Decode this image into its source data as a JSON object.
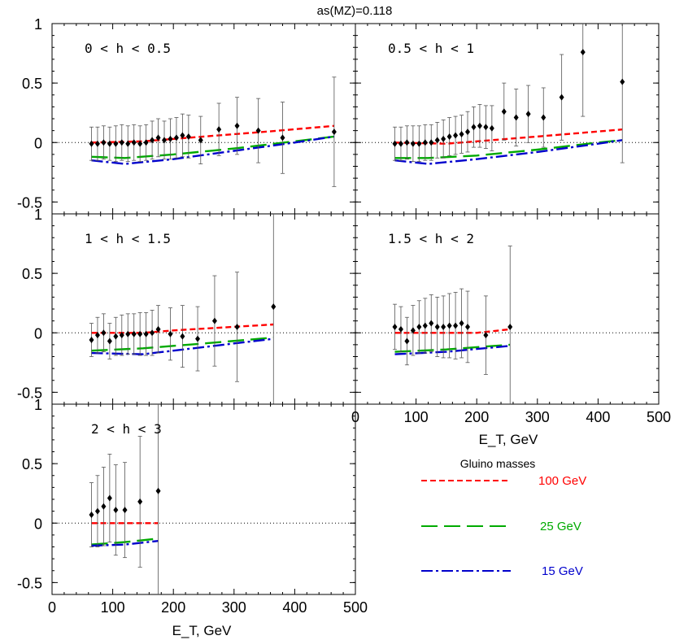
{
  "header": {
    "title": "as(MZ)=0.118"
  },
  "x_axis_label": "E_T, GeV",
  "legend": {
    "title": "Gluino masses",
    "entries": [
      {
        "label": "100 GeV",
        "color": "#ff0000",
        "style": "dashed"
      },
      {
        "label": "25 GeV",
        "color": "#00aa00",
        "style": "long-dashed"
      },
      {
        "label": "15 GeV",
        "color": "#0000cc",
        "style": "dash-dot"
      }
    ]
  },
  "chart_data": [
    {
      "type": "scatter",
      "title": "0 < h < 0.5",
      "xlim": [
        0,
        500
      ],
      "ylim": [
        -0.6,
        1.0
      ],
      "yticks": [
        -0.5,
        0,
        0.5,
        1
      ],
      "points": [
        {
          "x": 65,
          "y": -0.01,
          "err": 0.14
        },
        {
          "x": 75,
          "y": -0.01,
          "err": 0.14
        },
        {
          "x": 85,
          "y": 0.0,
          "err": 0.14
        },
        {
          "x": 95,
          "y": -0.01,
          "err": 0.14
        },
        {
          "x": 105,
          "y": -0.01,
          "err": 0.15
        },
        {
          "x": 115,
          "y": 0.0,
          "err": 0.15
        },
        {
          "x": 125,
          "y": -0.01,
          "err": 0.15
        },
        {
          "x": 135,
          "y": 0.0,
          "err": 0.15
        },
        {
          "x": 145,
          "y": -0.01,
          "err": 0.15
        },
        {
          "x": 155,
          "y": 0.0,
          "err": 0.15
        },
        {
          "x": 165,
          "y": 0.02,
          "err": 0.16
        },
        {
          "x": 175,
          "y": 0.04,
          "err": 0.16
        },
        {
          "x": 185,
          "y": 0.02,
          "err": 0.16
        },
        {
          "x": 195,
          "y": 0.03,
          "err": 0.17
        },
        {
          "x": 205,
          "y": 0.04,
          "err": 0.17
        },
        {
          "x": 215,
          "y": 0.06,
          "err": 0.18
        },
        {
          "x": 225,
          "y": 0.05,
          "err": 0.18
        },
        {
          "x": 245,
          "y": 0.02,
          "err": 0.2
        },
        {
          "x": 275,
          "y": 0.11,
          "err": 0.22
        },
        {
          "x": 305,
          "y": 0.14,
          "err": 0.24
        },
        {
          "x": 340,
          "y": 0.1,
          "err": 0.27
        },
        {
          "x": 380,
          "y": 0.04,
          "err": 0.3
        },
        {
          "x": 465,
          "y": 0.09,
          "err": 0.46
        }
      ],
      "series": [
        {
          "name": "100 GeV",
          "x": [
            65,
            150,
            250,
            350,
            465
          ],
          "y": [
            0.0,
            0.01,
            0.05,
            0.09,
            0.14
          ]
        },
        {
          "name": "25 GeV",
          "x": [
            65,
            120,
            200,
            300,
            400,
            465
          ],
          "y": [
            -0.12,
            -0.13,
            -0.1,
            -0.05,
            0.01,
            0.05
          ]
        },
        {
          "name": "15 GeV",
          "x": [
            65,
            120,
            200,
            300,
            400,
            465
          ],
          "y": [
            -0.15,
            -0.18,
            -0.14,
            -0.07,
            0.0,
            0.05
          ]
        }
      ]
    },
    {
      "type": "scatter",
      "title": "0.5 < h < 1",
      "xlim": [
        0,
        500
      ],
      "ylim": [
        -0.6,
        1.0
      ],
      "yticks": [
        -0.5,
        0,
        0.5,
        1
      ],
      "points": [
        {
          "x": 65,
          "y": -0.01,
          "err": 0.14
        },
        {
          "x": 75,
          "y": -0.01,
          "err": 0.14
        },
        {
          "x": 85,
          "y": 0.0,
          "err": 0.14
        },
        {
          "x": 95,
          "y": -0.01,
          "err": 0.15
        },
        {
          "x": 105,
          "y": -0.01,
          "err": 0.15
        },
        {
          "x": 115,
          "y": 0.0,
          "err": 0.15
        },
        {
          "x": 125,
          "y": 0.0,
          "err": 0.15
        },
        {
          "x": 135,
          "y": 0.02,
          "err": 0.15
        },
        {
          "x": 145,
          "y": 0.03,
          "err": 0.16
        },
        {
          "x": 155,
          "y": 0.05,
          "err": 0.16
        },
        {
          "x": 165,
          "y": 0.06,
          "err": 0.16
        },
        {
          "x": 175,
          "y": 0.07,
          "err": 0.16
        },
        {
          "x": 185,
          "y": 0.09,
          "err": 0.17
        },
        {
          "x": 195,
          "y": 0.13,
          "err": 0.17
        },
        {
          "x": 205,
          "y": 0.14,
          "err": 0.18
        },
        {
          "x": 215,
          "y": 0.13,
          "err": 0.18
        },
        {
          "x": 225,
          "y": 0.12,
          "err": 0.19
        },
        {
          "x": 245,
          "y": 0.26,
          "err": 0.24
        },
        {
          "x": 265,
          "y": 0.21,
          "err": 0.24
        },
        {
          "x": 285,
          "y": 0.24,
          "err": 0.24
        },
        {
          "x": 310,
          "y": 0.21,
          "err": 0.25
        },
        {
          "x": 340,
          "y": 0.38,
          "err": 0.36
        },
        {
          "x": 375,
          "y": 0.76,
          "err": 0.54
        },
        {
          "x": 440,
          "y": 0.51,
          "err": 0.68
        }
      ],
      "series": [
        {
          "name": "100 GeV",
          "x": [
            65,
            150,
            200,
            300,
            440
          ],
          "y": [
            0.0,
            -0.01,
            0.01,
            0.05,
            0.11
          ]
        },
        {
          "name": "25 GeV",
          "x": [
            65,
            120,
            200,
            300,
            400,
            440
          ],
          "y": [
            -0.13,
            -0.13,
            -0.11,
            -0.06,
            0.0,
            0.02
          ]
        },
        {
          "name": "15 GeV",
          "x": [
            65,
            120,
            200,
            300,
            400,
            440
          ],
          "y": [
            -0.15,
            -0.18,
            -0.14,
            -0.08,
            -0.01,
            0.02
          ]
        }
      ]
    },
    {
      "type": "scatter",
      "title": "1 < h < 1.5",
      "xlim": [
        0,
        500
      ],
      "ylim": [
        -0.6,
        1.0
      ],
      "yticks": [
        -0.5,
        0,
        0.5,
        1
      ],
      "points": [
        {
          "x": 65,
          "y": -0.06,
          "err": 0.14
        },
        {
          "x": 75,
          "y": -0.02,
          "err": 0.15
        },
        {
          "x": 85,
          "y": 0.0,
          "err": 0.16
        },
        {
          "x": 95,
          "y": -0.07,
          "err": 0.15
        },
        {
          "x": 105,
          "y": -0.03,
          "err": 0.16
        },
        {
          "x": 115,
          "y": -0.02,
          "err": 0.17
        },
        {
          "x": 125,
          "y": -0.01,
          "err": 0.17
        },
        {
          "x": 135,
          "y": -0.01,
          "err": 0.17
        },
        {
          "x": 145,
          "y": -0.01,
          "err": 0.18
        },
        {
          "x": 155,
          "y": -0.01,
          "err": 0.18
        },
        {
          "x": 165,
          "y": 0.0,
          "err": 0.19
        },
        {
          "x": 175,
          "y": 0.03,
          "err": 0.2
        },
        {
          "x": 195,
          "y": -0.01,
          "err": 0.22
        },
        {
          "x": 215,
          "y": -0.03,
          "err": 0.26
        },
        {
          "x": 240,
          "y": -0.05,
          "err": 0.27
        },
        {
          "x": 268,
          "y": 0.1,
          "err": 0.38
        },
        {
          "x": 305,
          "y": 0.05,
          "err": 0.46
        },
        {
          "x": 365,
          "y": 0.22,
          "err": 0.88
        }
      ],
      "series": [
        {
          "name": "100 GeV",
          "x": [
            65,
            150,
            200,
            300,
            365
          ],
          "y": [
            0.0,
            0.0,
            0.02,
            0.05,
            0.07
          ]
        },
        {
          "name": "25 GeV",
          "x": [
            65,
            150,
            250,
            365
          ],
          "y": [
            -0.15,
            -0.13,
            -0.09,
            -0.04
          ]
        },
        {
          "name": "15 GeV",
          "x": [
            65,
            150,
            250,
            365
          ],
          "y": [
            -0.17,
            -0.18,
            -0.12,
            -0.05
          ]
        }
      ]
    },
    {
      "type": "scatter",
      "title": "1.5 < h < 2",
      "xlim": [
        0,
        500
      ],
      "ylim": [
        -0.6,
        1.0
      ],
      "yticks": [
        -0.5,
        0,
        0.5,
        1
      ],
      "points": [
        {
          "x": 65,
          "y": 0.05,
          "err": 0.19
        },
        {
          "x": 75,
          "y": 0.03,
          "err": 0.19
        },
        {
          "x": 85,
          "y": -0.07,
          "err": 0.2
        },
        {
          "x": 95,
          "y": 0.02,
          "err": 0.21
        },
        {
          "x": 105,
          "y": 0.05,
          "err": 0.22
        },
        {
          "x": 115,
          "y": 0.06,
          "err": 0.23
        },
        {
          "x": 125,
          "y": 0.08,
          "err": 0.24
        },
        {
          "x": 135,
          "y": 0.05,
          "err": 0.25
        },
        {
          "x": 145,
          "y": 0.05,
          "err": 0.26
        },
        {
          "x": 155,
          "y": 0.06,
          "err": 0.27
        },
        {
          "x": 165,
          "y": 0.06,
          "err": 0.28
        },
        {
          "x": 175,
          "y": 0.08,
          "err": 0.29
        },
        {
          "x": 185,
          "y": 0.05,
          "err": 0.3
        },
        {
          "x": 215,
          "y": -0.02,
          "err": 0.33
        },
        {
          "x": 255,
          "y": 0.05,
          "err": 0.68
        }
      ],
      "series": [
        {
          "name": "100 GeV",
          "x": [
            65,
            150,
            200,
            255
          ],
          "y": [
            0.0,
            0.0,
            0.0,
            0.03
          ]
        },
        {
          "name": "25 GeV",
          "x": [
            65,
            150,
            255
          ],
          "y": [
            -0.16,
            -0.14,
            -0.1
          ]
        },
        {
          "name": "15 GeV",
          "x": [
            65,
            150,
            255
          ],
          "y": [
            -0.18,
            -0.16,
            -0.11
          ]
        }
      ]
    },
    {
      "type": "scatter",
      "title": "2 < h < 3",
      "xlim": [
        0,
        500
      ],
      "ylim": [
        -0.6,
        1.0
      ],
      "yticks": [
        -0.5,
        0,
        0.5,
        1
      ],
      "points": [
        {
          "x": 65,
          "y": 0.07,
          "err": 0.27
        },
        {
          "x": 75,
          "y": 0.1,
          "err": 0.3
        },
        {
          "x": 85,
          "y": 0.14,
          "err": 0.33
        },
        {
          "x": 95,
          "y": 0.21,
          "err": 0.37
        },
        {
          "x": 105,
          "y": 0.11,
          "err": 0.38
        },
        {
          "x": 120,
          "y": 0.11,
          "err": 0.4
        },
        {
          "x": 145,
          "y": 0.18,
          "err": 0.55
        },
        {
          "x": 175,
          "y": 0.27,
          "err": 0.92
        }
      ],
      "series": [
        {
          "name": "100 GeV",
          "x": [
            65,
            175
          ],
          "y": [
            0.0,
            0.0
          ]
        },
        {
          "name": "25 GeV",
          "x": [
            65,
            120,
            175
          ],
          "y": [
            -0.18,
            -0.16,
            -0.13
          ]
        },
        {
          "name": "15 GeV",
          "x": [
            65,
            120,
            175
          ],
          "y": [
            -0.19,
            -0.18,
            -0.15
          ]
        }
      ]
    }
  ]
}
